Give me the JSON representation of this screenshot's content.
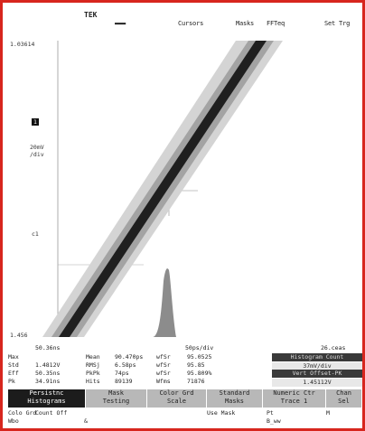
{
  "menu": {
    "brand": "TEK",
    "items": [
      "Cursors",
      "Masks",
      "FFTeq",
      "Set Trg"
    ]
  },
  "plot": {
    "ref_top": "1.03614",
    "ref_bottom": "1.456",
    "ch_marker": "1",
    "scale_mv": "20mV",
    "scale_div": "/div",
    "ch_marker2": "c1",
    "time_left": "50.36ns",
    "time_mid": "50ps/div",
    "time_right": "26.ceas"
  },
  "readout": {
    "rows": [
      [
        "Max",
        "",
        "Mean",
        "90.470ps",
        "wfSr",
        "95.0525"
      ],
      [
        "Std",
        "1.4812V",
        "RMSj",
        "6.58ps",
        "wfSr",
        "95.85"
      ],
      [
        "Eff",
        "50.35ns",
        "PkPk",
        "74ps",
        "wfSr",
        "95.809%"
      ],
      [
        "Pk",
        "34.91ns",
        "Hits",
        "89139",
        "Wfms",
        "71876"
      ]
    ],
    "right": [
      "Histogram Count",
      "37mV/div",
      "Vert Offset-PK",
      "1.45112V"
    ]
  },
  "softkeys": [
    {
      "line1": "Persistnc",
      "line2": "Histograms",
      "active": true
    },
    {
      "line1": "Mask",
      "line2": "Testing",
      "active": false
    },
    {
      "line1": "Color Grd",
      "line2": "Scale",
      "active": false
    },
    {
      "line1": "Standard",
      "line2": "Masks",
      "active": false
    },
    {
      "line1": "Numeric Ctr",
      "line2": "Trace 1",
      "active": false
    },
    {
      "line1": "Chan",
      "line2": "Sel",
      "active": false
    }
  ],
  "status": [
    [
      "Colo",
      "Grd"
    ],
    [
      "Count",
      "Off"
    ],
    [
      "",
      ""
    ],
    [
      "Use",
      "Mask"
    ],
    [
      "Pt",
      ""
    ],
    [
      "M",
      ""
    ]
  ],
  "status_bottom": [
    "Wbo",
    "&",
    "",
    "",
    "B_ww",
    ""
  ],
  "colors": {
    "frame": "#d7261e",
    "active_key": "#1c1c1c",
    "key": "#b8b8b8"
  }
}
